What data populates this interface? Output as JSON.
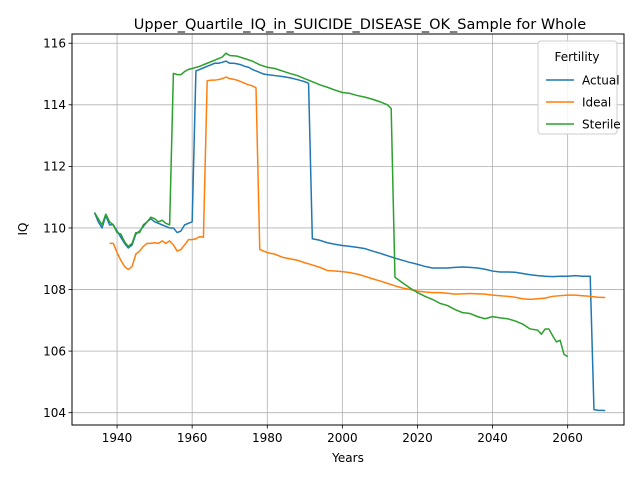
{
  "chart_data": {
    "type": "line",
    "title": "Upper_Quartile_IQ_in_SUICIDE_DISEASE_OK_Sample for Whole",
    "xlabel": "Years",
    "ylabel": "IQ",
    "xlim": [
      1928,
      2075
    ],
    "ylim": [
      103.6,
      116.3
    ],
    "xticks": [
      1940,
      1960,
      1980,
      2000,
      2020,
      2040,
      2060
    ],
    "yticks": [
      104,
      106,
      108,
      110,
      112,
      114,
      116
    ],
    "grid": true,
    "legend": {
      "title": "Fertility",
      "placement": "top-right"
    },
    "series": [
      {
        "name": "Actual",
        "color": "#1f77b4",
        "points": [
          [
            1934,
            110.5
          ],
          [
            1935,
            110.2
          ],
          [
            1936,
            110.0
          ],
          [
            1937,
            110.4
          ],
          [
            1938,
            110.1
          ],
          [
            1939,
            110.1
          ],
          [
            1940,
            109.9
          ],
          [
            1941,
            109.7
          ],
          [
            1942,
            109.5
          ],
          [
            1943,
            109.35
          ],
          [
            1944,
            109.45
          ],
          [
            1945,
            109.8
          ],
          [
            1946,
            109.9
          ],
          [
            1947,
            110.05
          ],
          [
            1948,
            110.2
          ],
          [
            1949,
            110.3
          ],
          [
            1950,
            110.2
          ],
          [
            1951,
            110.15
          ],
          [
            1952,
            110.1
          ],
          [
            1953,
            110.05
          ],
          [
            1954,
            110.0
          ],
          [
            1955,
            110.0
          ],
          [
            1956,
            109.85
          ],
          [
            1957,
            109.9
          ],
          [
            1958,
            110.1
          ],
          [
            1959,
            110.15
          ],
          [
            1960,
            110.2
          ],
          [
            1961,
            115.1
          ],
          [
            1962,
            115.15
          ],
          [
            1963,
            115.2
          ],
          [
            1964,
            115.25
          ],
          [
            1965,
            115.3
          ],
          [
            1966,
            115.35
          ],
          [
            1967,
            115.35
          ],
          [
            1968,
            115.38
          ],
          [
            1969,
            115.42
          ],
          [
            1970,
            115.35
          ],
          [
            1971,
            115.35
          ],
          [
            1972,
            115.33
          ],
          [
            1973,
            115.3
          ],
          [
            1974,
            115.25
          ],
          [
            1975,
            115.22
          ],
          [
            1976,
            115.15
          ],
          [
            1977,
            115.1
          ],
          [
            1978,
            115.05
          ],
          [
            1979,
            115.0
          ],
          [
            1980,
            114.98
          ],
          [
            1982,
            114.95
          ],
          [
            1984,
            114.92
          ],
          [
            1986,
            114.88
          ],
          [
            1988,
            114.82
          ],
          [
            1990,
            114.75
          ],
          [
            1991,
            114.7
          ],
          [
            1992,
            109.65
          ],
          [
            1994,
            109.6
          ],
          [
            1996,
            109.52
          ],
          [
            1998,
            109.47
          ],
          [
            2000,
            109.43
          ],
          [
            2002,
            109.4
          ],
          [
            2004,
            109.37
          ],
          [
            2006,
            109.33
          ],
          [
            2008,
            109.25
          ],
          [
            2010,
            109.18
          ],
          [
            2012,
            109.1
          ],
          [
            2014,
            109.02
          ],
          [
            2016,
            108.95
          ],
          [
            2018,
            108.88
          ],
          [
            2020,
            108.82
          ],
          [
            2022,
            108.75
          ],
          [
            2024,
            108.7
          ],
          [
            2026,
            108.7
          ],
          [
            2028,
            108.7
          ],
          [
            2030,
            108.72
          ],
          [
            2032,
            108.73
          ],
          [
            2034,
            108.72
          ],
          [
            2036,
            108.7
          ],
          [
            2038,
            108.66
          ],
          [
            2040,
            108.6
          ],
          [
            2042,
            108.57
          ],
          [
            2044,
            108.57
          ],
          [
            2046,
            108.56
          ],
          [
            2048,
            108.52
          ],
          [
            2050,
            108.48
          ],
          [
            2052,
            108.45
          ],
          [
            2054,
            108.43
          ],
          [
            2056,
            108.42
          ],
          [
            2058,
            108.43
          ],
          [
            2060,
            108.43
          ],
          [
            2062,
            108.45
          ],
          [
            2064,
            108.43
          ],
          [
            2066,
            108.43
          ],
          [
            2067,
            104.1
          ],
          [
            2068,
            104.08
          ],
          [
            2070,
            104.07
          ]
        ]
      },
      {
        "name": "Ideal",
        "color": "#ff7f0e",
        "points": [
          [
            1938,
            109.5
          ],
          [
            1939,
            109.5
          ],
          [
            1940,
            109.2
          ],
          [
            1941,
            108.95
          ],
          [
            1942,
            108.75
          ],
          [
            1943,
            108.65
          ],
          [
            1944,
            108.75
          ],
          [
            1945,
            109.15
          ],
          [
            1946,
            109.25
          ],
          [
            1947,
            109.4
          ],
          [
            1948,
            109.5
          ],
          [
            1949,
            109.5
          ],
          [
            1950,
            109.52
          ],
          [
            1951,
            109.5
          ],
          [
            1952,
            109.58
          ],
          [
            1953,
            109.5
          ],
          [
            1954,
            109.58
          ],
          [
            1955,
            109.45
          ],
          [
            1956,
            109.25
          ],
          [
            1957,
            109.3
          ],
          [
            1958,
            109.45
          ],
          [
            1959,
            109.62
          ],
          [
            1960,
            109.62
          ],
          [
            1961,
            109.65
          ],
          [
            1962,
            109.72
          ],
          [
            1963,
            109.7
          ],
          [
            1964,
            114.78
          ],
          [
            1965,
            114.8
          ],
          [
            1966,
            114.8
          ],
          [
            1967,
            114.82
          ],
          [
            1968,
            114.85
          ],
          [
            1969,
            114.9
          ],
          [
            1970,
            114.85
          ],
          [
            1971,
            114.83
          ],
          [
            1972,
            114.8
          ],
          [
            1973,
            114.75
          ],
          [
            1974,
            114.7
          ],
          [
            1975,
            114.65
          ],
          [
            1976,
            114.62
          ],
          [
            1977,
            114.55
          ],
          [
            1978,
            109.3
          ],
          [
            1979,
            109.25
          ],
          [
            1980,
            109.2
          ],
          [
            1982,
            109.15
          ],
          [
            1984,
            109.05
          ],
          [
            1986,
            109.0
          ],
          [
            1988,
            108.95
          ],
          [
            1990,
            108.87
          ],
          [
            1992,
            108.8
          ],
          [
            1994,
            108.72
          ],
          [
            1996,
            108.62
          ],
          [
            1998,
            108.6
          ],
          [
            2000,
            108.58
          ],
          [
            2002,
            108.55
          ],
          [
            2004,
            108.5
          ],
          [
            2006,
            108.43
          ],
          [
            2008,
            108.35
          ],
          [
            2010,
            108.28
          ],
          [
            2012,
            108.2
          ],
          [
            2014,
            108.12
          ],
          [
            2016,
            108.05
          ],
          [
            2018,
            108.0
          ],
          [
            2020,
            107.95
          ],
          [
            2022,
            107.92
          ],
          [
            2024,
            107.9
          ],
          [
            2026,
            107.9
          ],
          [
            2028,
            107.88
          ],
          [
            2030,
            107.85
          ],
          [
            2032,
            107.86
          ],
          [
            2034,
            107.87
          ],
          [
            2036,
            107.86
          ],
          [
            2038,
            107.85
          ],
          [
            2040,
            107.82
          ],
          [
            2042,
            107.8
          ],
          [
            2044,
            107.78
          ],
          [
            2046,
            107.75
          ],
          [
            2048,
            107.7
          ],
          [
            2050,
            107.68
          ],
          [
            2052,
            107.7
          ],
          [
            2054,
            107.72
          ],
          [
            2056,
            107.78
          ],
          [
            2058,
            107.8
          ],
          [
            2060,
            107.82
          ],
          [
            2062,
            107.82
          ],
          [
            2064,
            107.8
          ],
          [
            2066,
            107.78
          ],
          [
            2068,
            107.75
          ],
          [
            2070,
            107.74
          ]
        ]
      },
      {
        "name": "Sterile",
        "color": "#2ca02c",
        "points": [
          [
            1934,
            110.5
          ],
          [
            1935,
            110.3
          ],
          [
            1936,
            110.1
          ],
          [
            1937,
            110.45
          ],
          [
            1938,
            110.2
          ],
          [
            1939,
            110.1
          ],
          [
            1940,
            109.85
          ],
          [
            1941,
            109.8
          ],
          [
            1942,
            109.55
          ],
          [
            1943,
            109.4
          ],
          [
            1944,
            109.5
          ],
          [
            1945,
            109.85
          ],
          [
            1946,
            109.85
          ],
          [
            1947,
            110.1
          ],
          [
            1948,
            110.2
          ],
          [
            1949,
            110.35
          ],
          [
            1950,
            110.3
          ],
          [
            1951,
            110.2
          ],
          [
            1952,
            110.25
          ],
          [
            1953,
            110.15
          ],
          [
            1954,
            110.1
          ],
          [
            1955,
            115.02
          ],
          [
            1956,
            114.98
          ],
          [
            1957,
            114.98
          ],
          [
            1958,
            115.08
          ],
          [
            1959,
            115.15
          ],
          [
            1960,
            115.18
          ],
          [
            1962,
            115.25
          ],
          [
            1964,
            115.35
          ],
          [
            1966,
            115.45
          ],
          [
            1968,
            115.55
          ],
          [
            1969,
            115.68
          ],
          [
            1970,
            115.6
          ],
          [
            1972,
            115.58
          ],
          [
            1974,
            115.5
          ],
          [
            1976,
            115.42
          ],
          [
            1978,
            115.3
          ],
          [
            1980,
            115.22
          ],
          [
            1982,
            115.18
          ],
          [
            1984,
            115.1
          ],
          [
            1986,
            115.02
          ],
          [
            1988,
            114.95
          ],
          [
            1990,
            114.85
          ],
          [
            1992,
            114.75
          ],
          [
            1994,
            114.65
          ],
          [
            1996,
            114.57
          ],
          [
            1998,
            114.48
          ],
          [
            2000,
            114.4
          ],
          [
            2002,
            114.37
          ],
          [
            2004,
            114.3
          ],
          [
            2006,
            114.25
          ],
          [
            2008,
            114.18
          ],
          [
            2010,
            114.1
          ],
          [
            2012,
            114.0
          ],
          [
            2013,
            113.88
          ],
          [
            2014,
            108.4
          ],
          [
            2016,
            108.22
          ],
          [
            2018,
            108.05
          ],
          [
            2020,
            107.9
          ],
          [
            2022,
            107.78
          ],
          [
            2024,
            107.68
          ],
          [
            2026,
            107.55
          ],
          [
            2028,
            107.48
          ],
          [
            2030,
            107.35
          ],
          [
            2032,
            107.25
          ],
          [
            2034,
            107.22
          ],
          [
            2036,
            107.12
          ],
          [
            2038,
            107.05
          ],
          [
            2040,
            107.12
          ],
          [
            2042,
            107.08
          ],
          [
            2044,
            107.05
          ],
          [
            2046,
            106.98
          ],
          [
            2048,
            106.88
          ],
          [
            2050,
            106.72
          ],
          [
            2052,
            106.68
          ],
          [
            2053,
            106.55
          ],
          [
            2054,
            106.72
          ],
          [
            2055,
            106.72
          ],
          [
            2056,
            106.5
          ],
          [
            2057,
            106.3
          ],
          [
            2058,
            106.35
          ],
          [
            2059,
            105.9
          ],
          [
            2060,
            105.82
          ]
        ]
      }
    ]
  }
}
